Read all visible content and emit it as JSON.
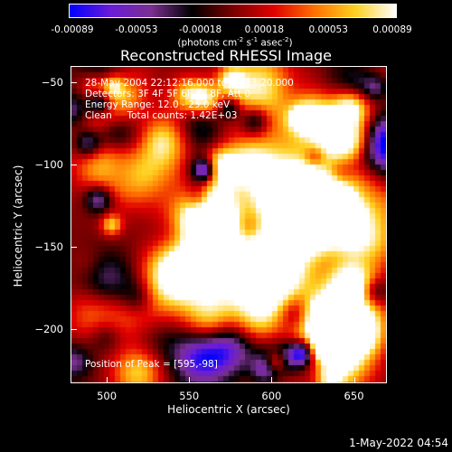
{
  "colorbar": {
    "ticks": [
      "-0.00089",
      "-0.00053",
      "-0.00018",
      "0.00018",
      "0.00053",
      "0.00089"
    ],
    "unit_prefix": "(photons cm",
    "unit_exp1": "-2",
    "unit_mid": " s",
    "unit_exp2": "-1",
    "unit_mid2": " asec",
    "unit_exp3": "-2",
    "unit_suffix": ")",
    "colors": [
      "#0000ff",
      "#6a1cd8",
      "#7a3090",
      "#000000",
      "#7a0000",
      "#e00000",
      "#ff7000",
      "#ffd020",
      "#ffffff"
    ]
  },
  "chart_data": {
    "type": "heatmap",
    "title": "Reconstructed RHESSI Image",
    "xlabel": "Heliocentric X (arcsec)",
    "ylabel": "Heliocentric Y (arcsec)",
    "xlim": [
      478,
      670
    ],
    "ylim": [
      -233,
      -40
    ],
    "x_ticks": [
      500,
      550,
      600,
      650
    ],
    "y_ticks": [
      -50,
      -100,
      -150,
      -200
    ],
    "colorbar_range": [
      -0.00089,
      0.00089
    ],
    "peak": [
      595,
      -98
    ],
    "annotations": [
      "28-May-2004 22:12:16.000 to 22:13:20.000",
      "Detectors: 3F 4F 5F 6F 7F 8F, Att 0",
      "Energy Range: 12.0 - 25.0 keV",
      "Clean     Total counts: 1.42E+03"
    ],
    "peak_label": "Position of Peak = [595,-98]"
  },
  "timestamp": "1-May-2022 04:54"
}
